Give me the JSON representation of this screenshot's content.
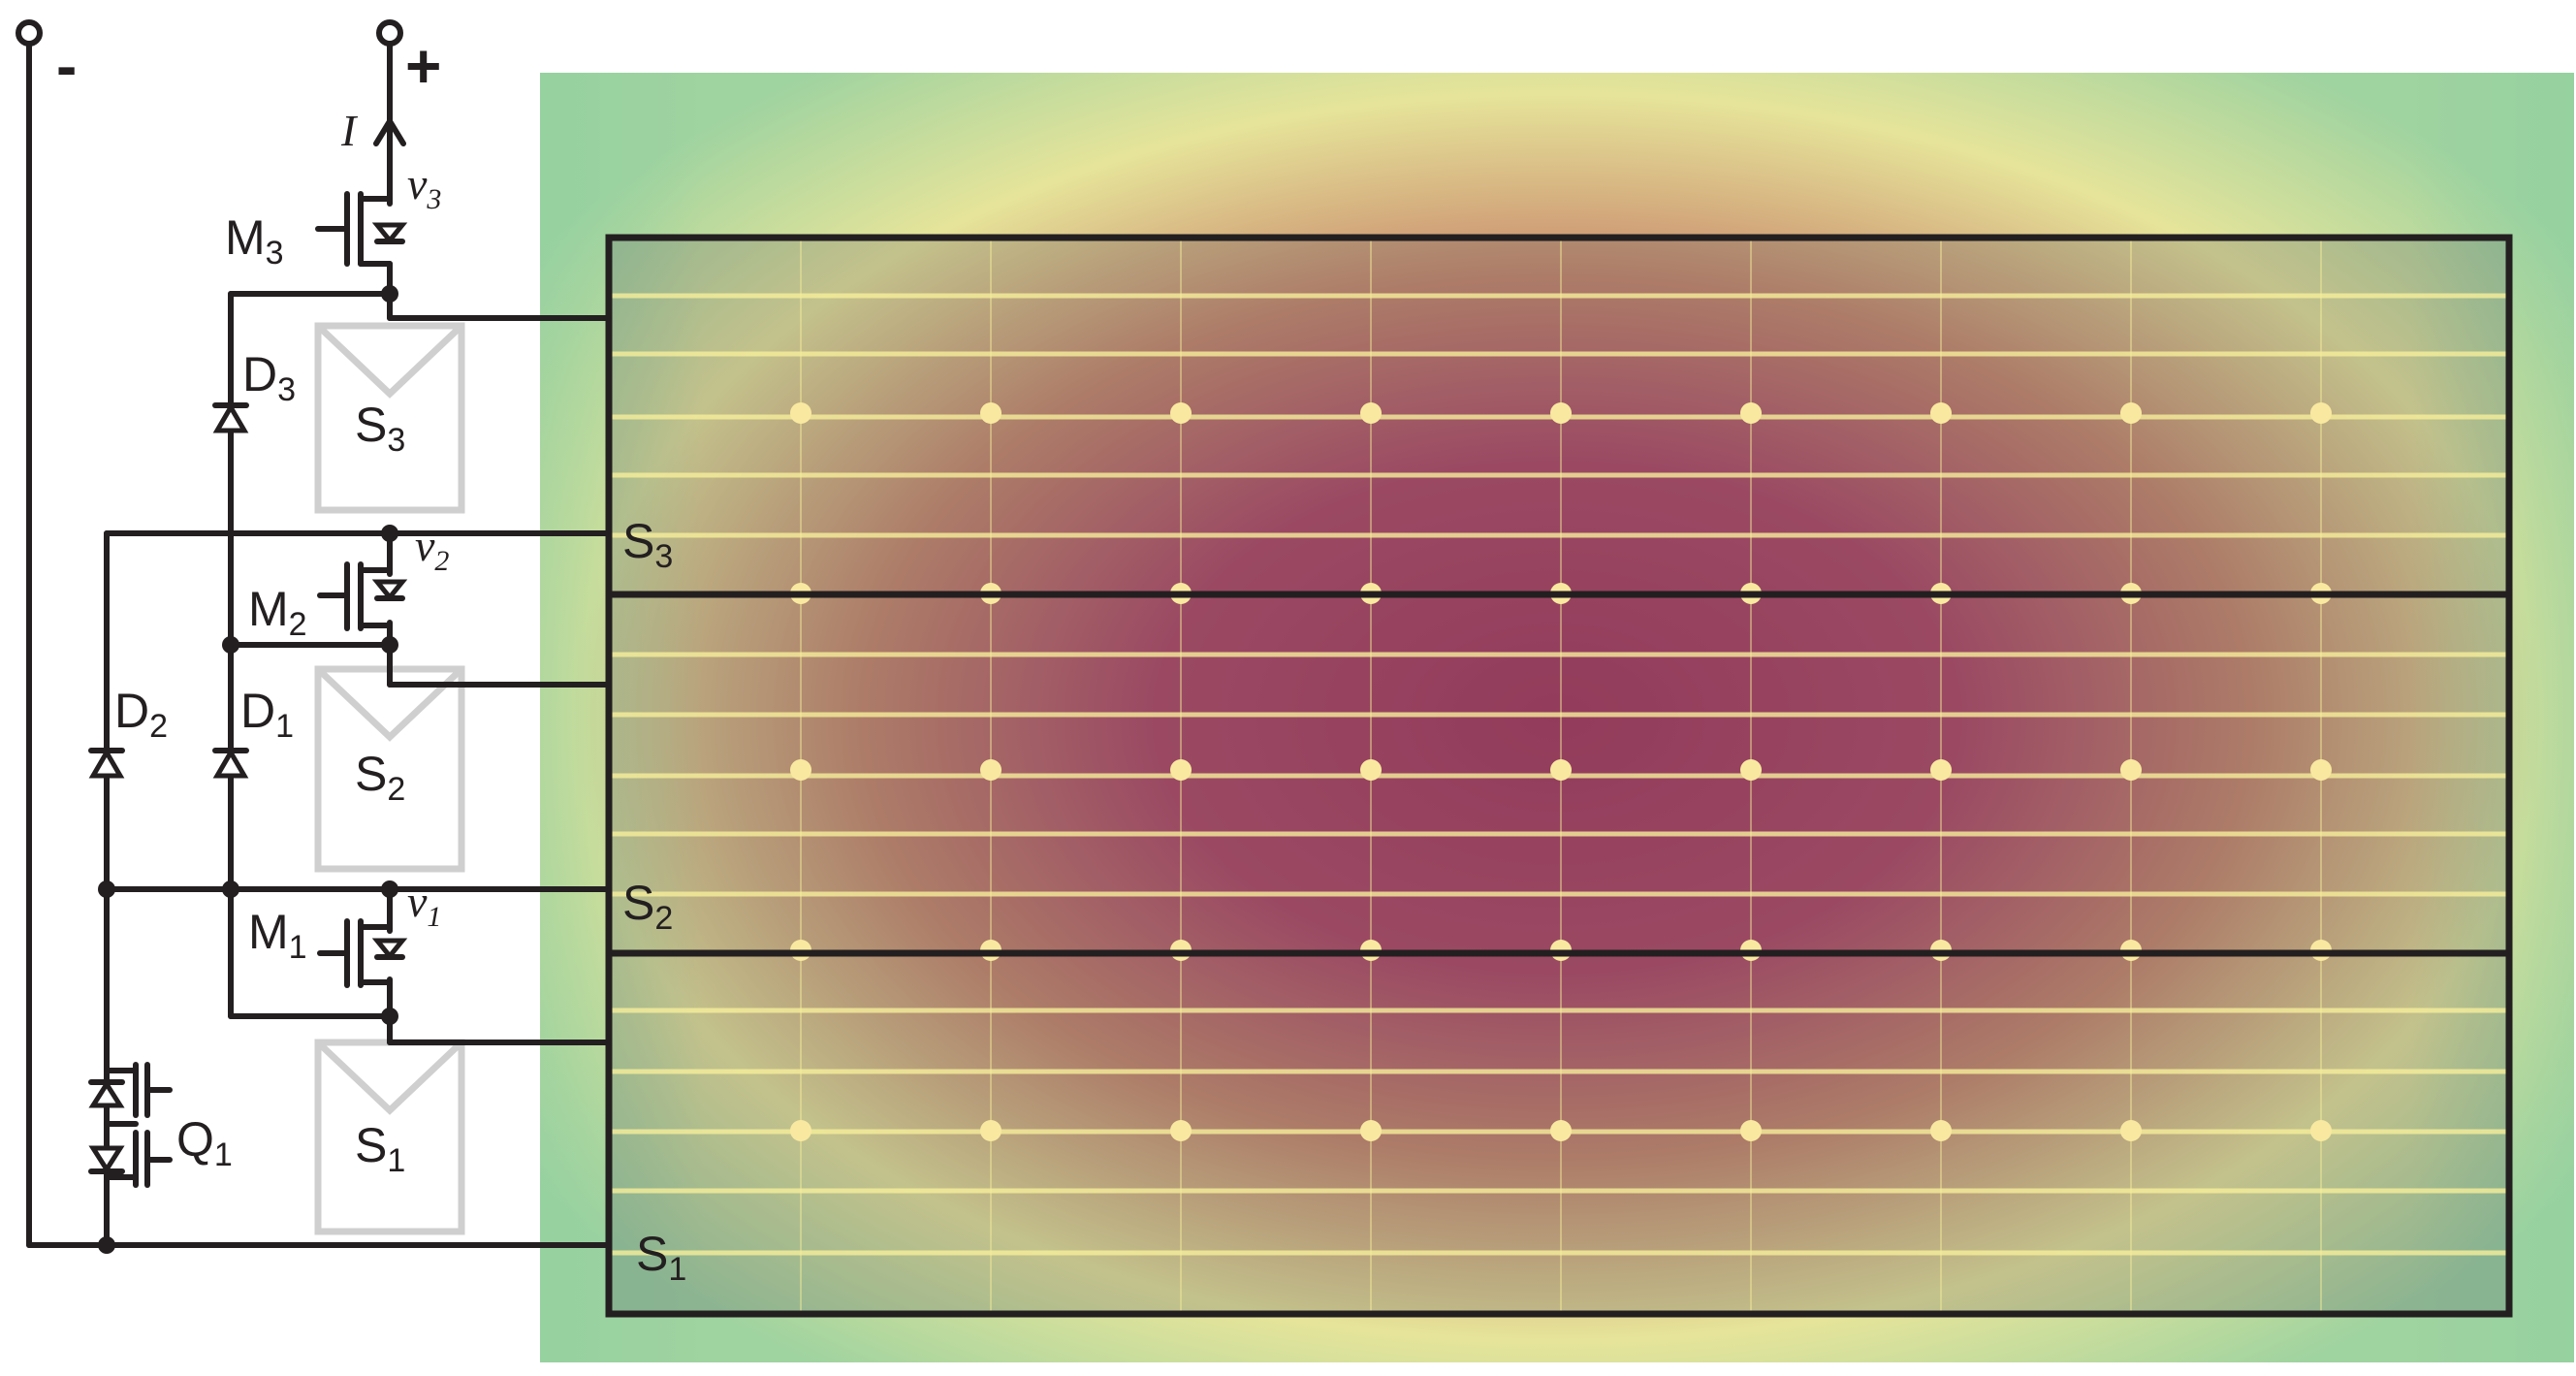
{
  "terminals": {
    "minus": "-",
    "plus": "+"
  },
  "current": {
    "symbol": "I"
  },
  "nodes": {
    "v3": {
      "base": "v",
      "sub": "3"
    },
    "v2": {
      "base": "v",
      "sub": "2"
    },
    "v1": {
      "base": "v",
      "sub": "1"
    }
  },
  "mosfets": {
    "m3": {
      "base": "M",
      "sub": "3"
    },
    "m2": {
      "base": "M",
      "sub": "2"
    },
    "m1": {
      "base": "M",
      "sub": "1"
    }
  },
  "diodes": {
    "d3": {
      "base": "D",
      "sub": "3"
    },
    "d2": {
      "base": "D",
      "sub": "2"
    },
    "d1": {
      "base": "D",
      "sub": "1"
    }
  },
  "switch": {
    "base": "Q",
    "sub": "1"
  },
  "cells": {
    "s3": {
      "base": "S",
      "sub": "3"
    },
    "s2": {
      "base": "S",
      "sub": "2"
    },
    "s1": {
      "base": "S",
      "sub": "1"
    }
  },
  "panel_sections": {
    "s3": {
      "base": "S",
      "sub": "3"
    },
    "s2": {
      "base": "S",
      "sub": "2"
    },
    "s1": {
      "base": "S",
      "sub": "1"
    }
  },
  "colors": {
    "wire": "#231f20",
    "cell_outline": "#cfcfcf",
    "hot": "#a8385c",
    "warm": "#c98a6c",
    "cool_green": "#9fd3a0",
    "pale_yellow": "#f5f0a8",
    "grid_line": "#f7ef9c"
  }
}
